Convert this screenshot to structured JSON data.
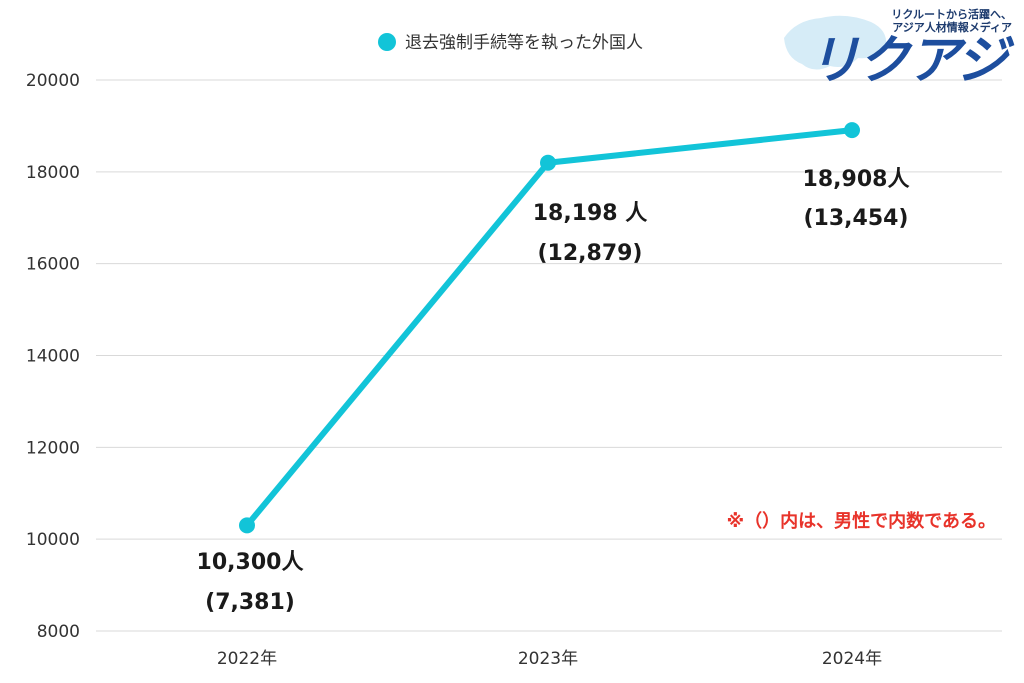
{
  "chart_data": {
    "type": "line",
    "categories": [
      "2022年",
      "2023年",
      "2024年"
    ],
    "series": [
      {
        "name": "退去強制手続等を執った外国人",
        "values": [
          10300,
          18198,
          18908
        ]
      }
    ],
    "data_labels": [
      {
        "total": "10,300人",
        "male": "(7,381)"
      },
      {
        "total": "18,198 人",
        "male": "(12,879)"
      },
      {
        "total": "18,908人",
        "male": "(13,454)"
      }
    ],
    "yticks": [
      "8000",
      "10000",
      "12000",
      "14000",
      "16000",
      "18000",
      "20000"
    ],
    "ylim": [
      8000,
      20000
    ],
    "grid": true,
    "legend_position": "top",
    "note": "※（）内は、男性で内数である。",
    "colors": {
      "line": "#12c4d8",
      "note": "#e8332a",
      "grid": "#d9d9d9"
    }
  },
  "logo": {
    "tagline_1": "リクルートから活躍へ、",
    "tagline_2": "アジア人材情報メディア",
    "name": "リクアジ"
  }
}
